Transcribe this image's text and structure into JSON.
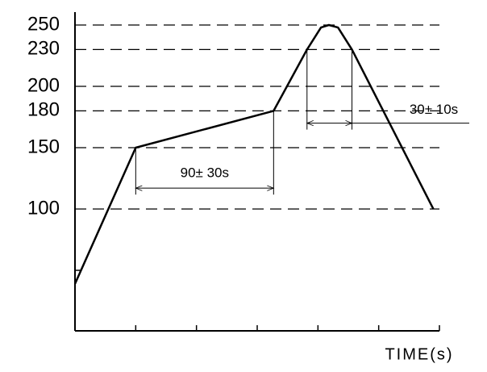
{
  "chart_data": {
    "type": "line",
    "x_label": "TIME(s)",
    "x": [
      0,
      1,
      3.27,
      3.82,
      4.05,
      4.18,
      4.33,
      4.56,
      5.9
    ],
    "series": [
      {
        "color": "#000000",
        "values": [
          39,
          150,
          180,
          230,
          248,
          250,
          248,
          230,
          100
        ]
      }
    ],
    "xlim": [
      0,
      6
    ],
    "ylim": [
      0,
      250
    ],
    "xminor_ticks": [
      1,
      2,
      3,
      4,
      5,
      6
    ],
    "yminor_ticks": [
      50
    ],
    "yticks": [
      100,
      150,
      180,
      200,
      230,
      250
    ],
    "grid": "dashed",
    "annotations": [
      {
        "text": "90± 30s",
        "from": 1,
        "to": 3.27,
        "y": 117
      },
      {
        "text": "30± 10s",
        "from": 3.82,
        "to": 4.56,
        "y": 170
      }
    ]
  }
}
